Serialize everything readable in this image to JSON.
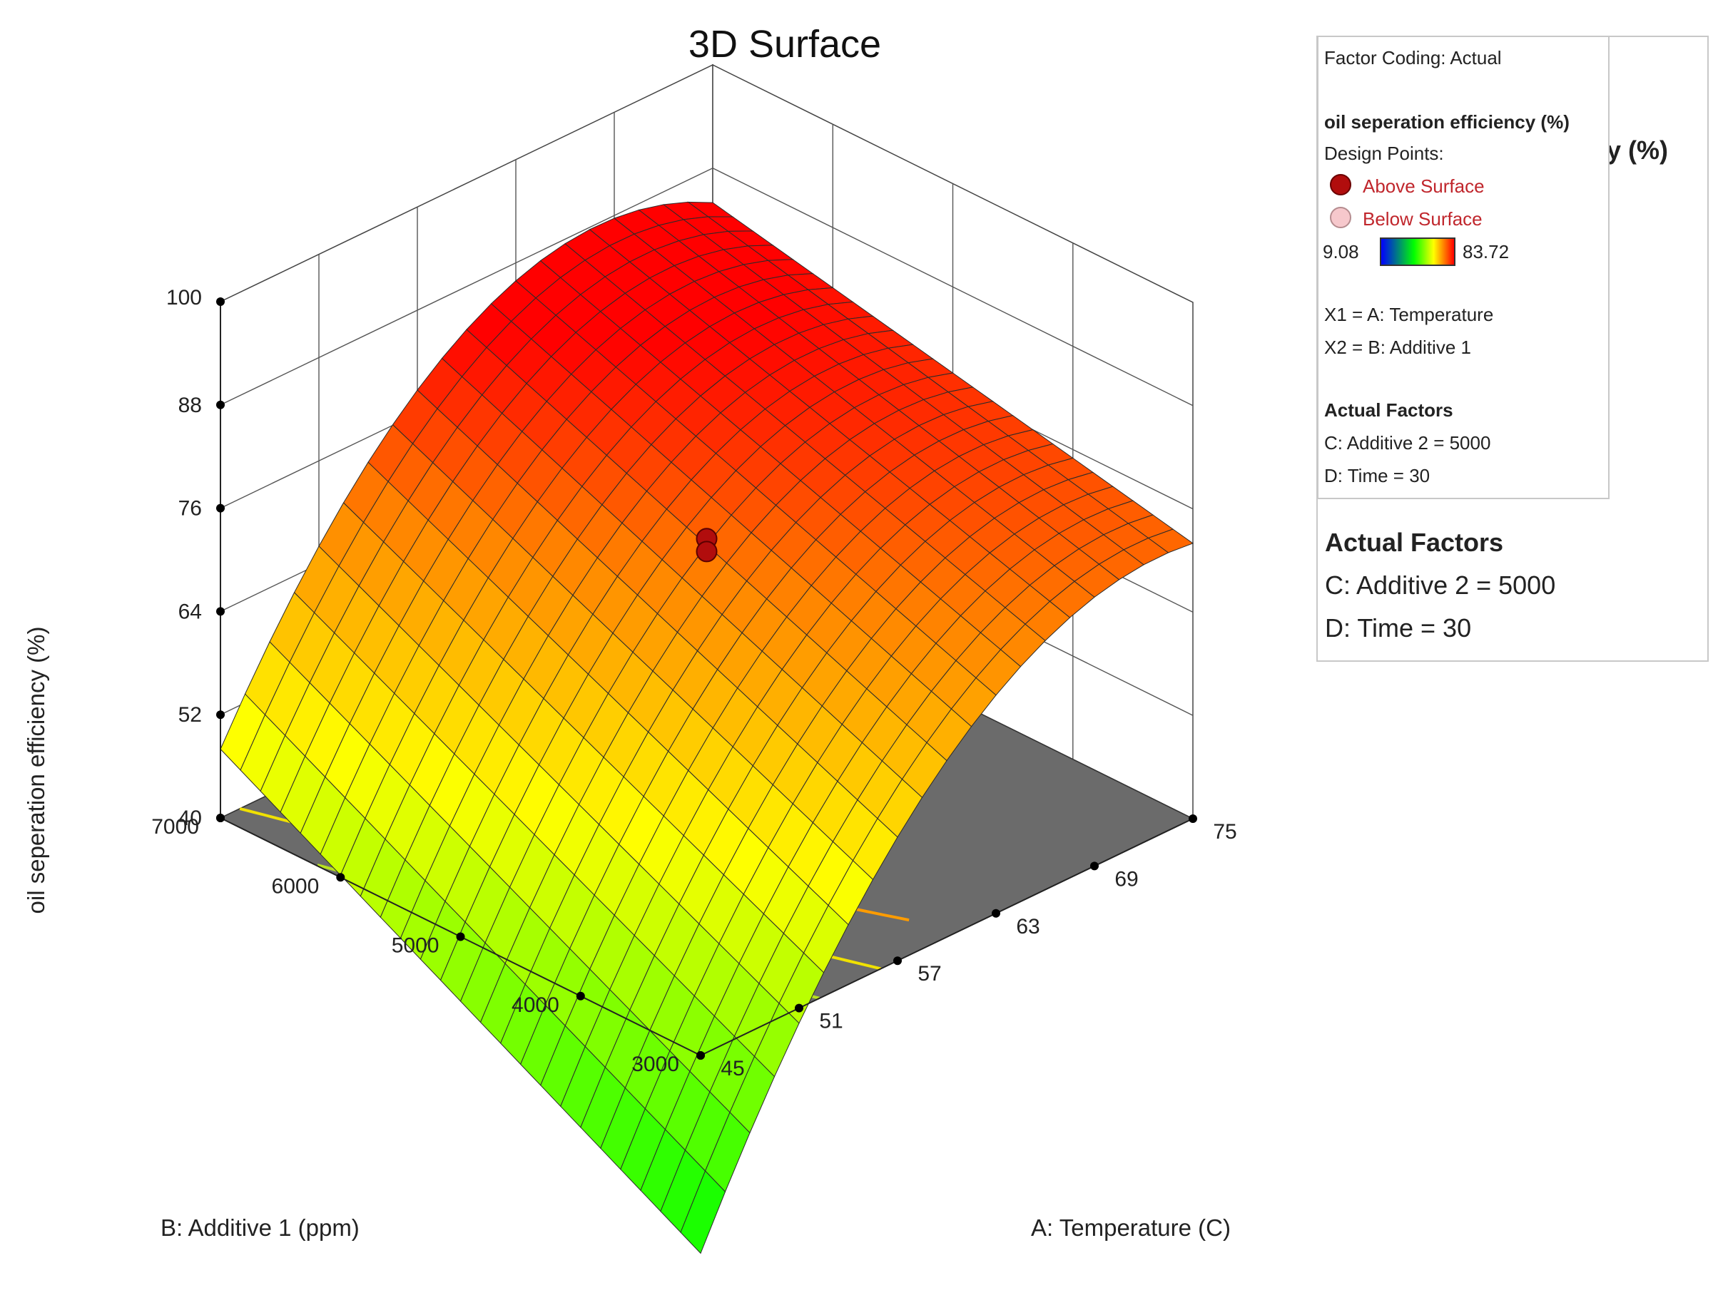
{
  "chart_data": {
    "type": "surface3d",
    "title": "3D Surface",
    "zlabel": "oil seperation efficiency  (%)",
    "xlabel": "A: Temperature (C)",
    "ylabel": "B: Additive 1  (ppm)",
    "x_ticks": [
      "45",
      "51",
      "57",
      "63",
      "69",
      "75"
    ],
    "y_ticks": [
      "3000",
      "4000",
      "5000",
      "6000",
      "7000"
    ],
    "z_ticks": [
      "40",
      "52",
      "64",
      "76",
      "88",
      "100"
    ],
    "xlim": [
      45,
      75
    ],
    "ylim": [
      3000,
      7000
    ],
    "zlim": [
      40,
      100
    ],
    "response_range": [
      9.08,
      83.72
    ],
    "surface_corners": [
      {
        "temperature": 45,
        "additive_1": 3000,
        "efficiency": 17
      },
      {
        "temperature": 45,
        "additive_1": 7000,
        "efficiency": 48
      },
      {
        "temperature": 75,
        "additive_1": 7000,
        "efficiency": 84
      },
      {
        "temperature": 75,
        "additive_1": 3000,
        "efficiency": 72
      }
    ],
    "surface_peak": {
      "temperature": 60,
      "additive_1": 7000,
      "efficiency": 83
    },
    "design_points": [
      {
        "temperature": 60,
        "additive_1": 5000,
        "efficiency": 72.5,
        "position": "above"
      },
      {
        "temperature": 60,
        "additive_1": 5000,
        "efficiency": 71,
        "position": "above"
      }
    ],
    "colors": {
      "low": "#00ff00",
      "mid": "#ffff00",
      "high": "#ff0000",
      "floor": "#6b6b6b"
    }
  },
  "legend": {
    "factor_coding": "Factor Coding: Actual",
    "response_name": "oil seperation efficiency  (%)",
    "hidden_response_tail": "y  (%)",
    "design_points_label": "Design Points:",
    "above_surface": "Above Surface",
    "below_surface": "Below Surface",
    "color_min": "9.08",
    "color_max": "83.72",
    "x1": "X1 = A: Temperature",
    "x2": "X2 = B: Additive 1",
    "actual_factors_title": "Actual Factors",
    "factor_c": "C: Additive 2 = 5000",
    "factor_d": "D: Time = 30"
  }
}
